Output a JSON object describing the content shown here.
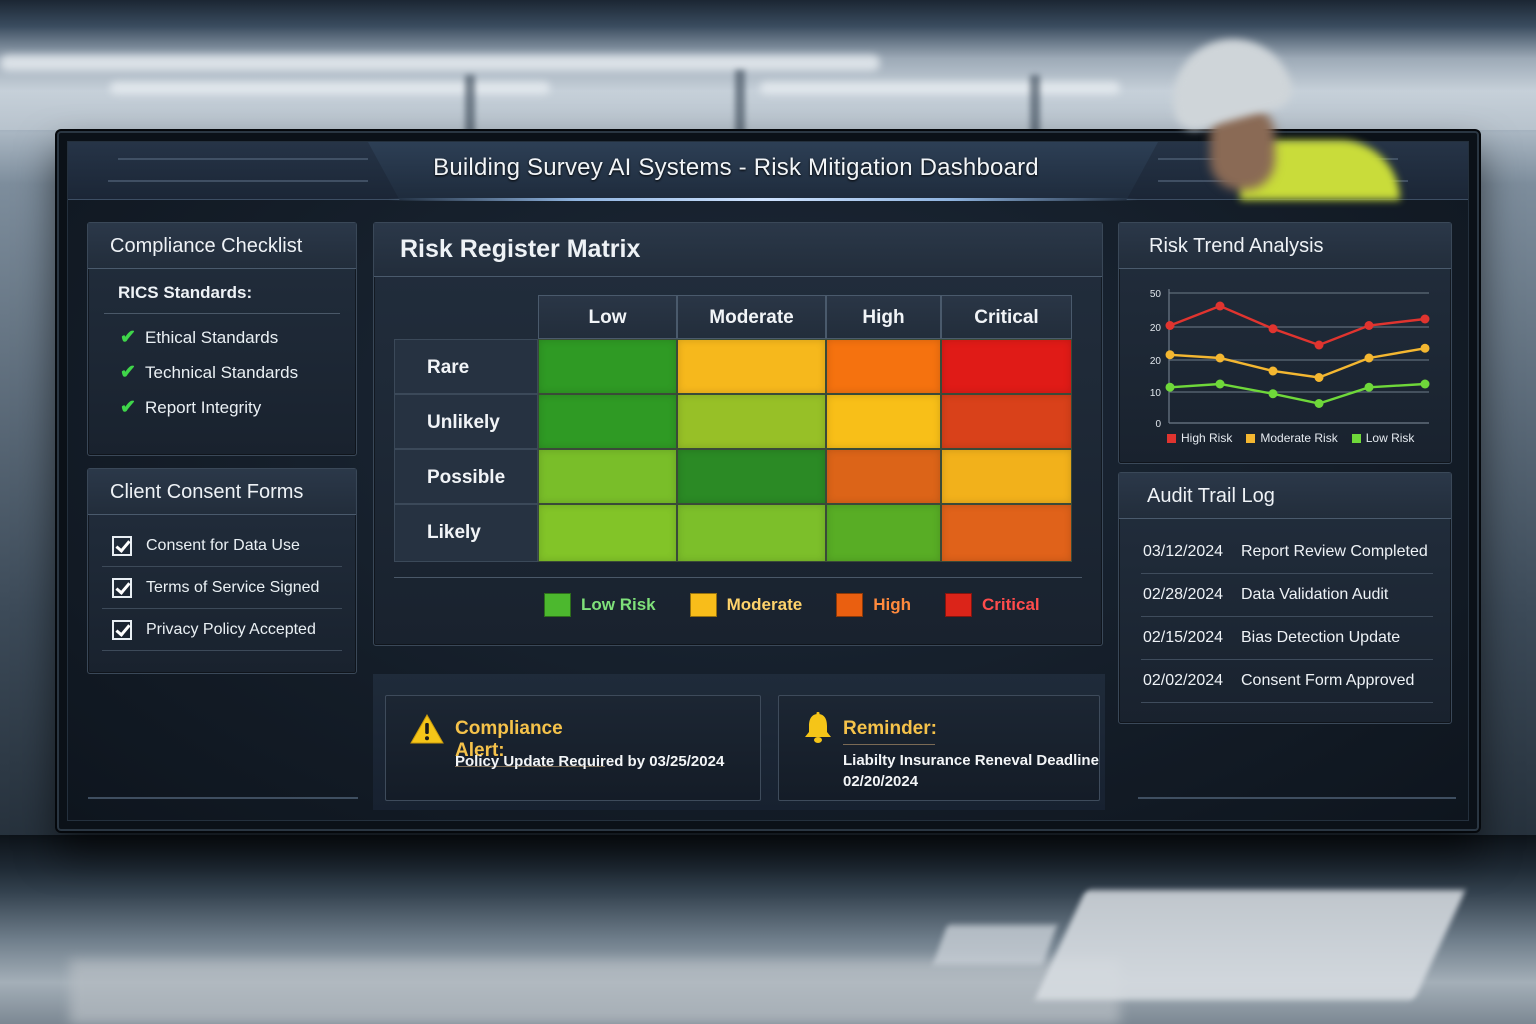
{
  "window": {
    "title": "Building Survey AI Systems - Risk Mitigation Dashboard"
  },
  "compliance": {
    "title": "Compliance Checklist",
    "section": "RICS Standards:",
    "items": [
      {
        "label": "Ethical Standards",
        "status": "checked"
      },
      {
        "label": "Technical Standards",
        "status": "checked"
      },
      {
        "label": "Report Integrity",
        "status": "checked"
      }
    ]
  },
  "consent": {
    "title": "Client Consent Forms",
    "items": [
      {
        "label": "Consent for Data Use",
        "checked": true
      },
      {
        "label": "Terms of Service Signed",
        "checked": true
      },
      {
        "label": "Privacy Policy Accepted",
        "checked": true
      }
    ]
  },
  "matrix": {
    "title": "Risk Register Matrix",
    "columns": [
      "Low",
      "Moderate",
      "High",
      "Critical"
    ],
    "rows": [
      "Rare",
      "Unlikely",
      "Possible",
      "Likely"
    ],
    "cells": [
      [
        "#2f9a24",
        "#f6b81c",
        "#f5720f",
        "#e01b17"
      ],
      [
        "#2f9a24",
        "#97c027",
        "#f8bf18",
        "#d9411a"
      ],
      [
        "#79be29",
        "#2b8a25",
        "#dc6418",
        "#f2b11b"
      ],
      [
        "#82c428",
        "#7cbf2a",
        "#58ad25",
        "#e0621a"
      ]
    ],
    "legend": [
      {
        "label": "Low Risk",
        "color": "#4cb82e",
        "text_color": "#7fe07a"
      },
      {
        "label": "Moderate",
        "color": "#f8bd1a",
        "text_color": "#ffd36b"
      },
      {
        "label": "High",
        "color": "#ea5f10",
        "text_color": "#ff8a3d"
      },
      {
        "label": "Critical",
        "color": "#db2419",
        "text_color": "#ff4c4c"
      }
    ]
  },
  "trend": {
    "title": "Risk Trend Analysis",
    "legend": [
      "High Risk",
      "Moderate Risk",
      "Low Risk"
    ]
  },
  "chart_data": {
    "type": "line",
    "title": "Risk Trend Analysis",
    "xlabel": "",
    "ylabel": "",
    "y_tick_labels": [
      "0",
      "10",
      "20",
      "20",
      "50"
    ],
    "x": [
      1,
      2,
      3,
      4,
      5,
      6
    ],
    "grid": true,
    "legend_position": "bottom",
    "series": [
      {
        "name": "High Risk",
        "color": "#e0342f",
        "values": [
          30,
          36,
          29,
          24,
          30,
          32
        ]
      },
      {
        "name": "Moderate Risk",
        "color": "#f4b731",
        "values": [
          21,
          20,
          16,
          14,
          20,
          23
        ]
      },
      {
        "name": "Low Risk",
        "color": "#6fd83a",
        "values": [
          11,
          12,
          9,
          6,
          11,
          12
        ]
      }
    ]
  },
  "audit": {
    "title": "Audit Trail Log",
    "entries": [
      {
        "date": "03/12/2024",
        "event": "Report Review Completed"
      },
      {
        "date": "02/28/2024",
        "event": "Data Validation Audit"
      },
      {
        "date": "02/15/2024",
        "event": "Bias Detection Update"
      },
      {
        "date": "02/02/2024",
        "event": "Consent Form Approved"
      }
    ]
  },
  "alerts": {
    "compliance": {
      "title": "Compliance Alert:",
      "body": "Policy Update Required by 03/25/2024",
      "icon": "warning-icon"
    },
    "reminder": {
      "title": "Reminder:",
      "body_line1": "Liabilty Insurance Reneval Deadline",
      "body_line2": "02/20/2024",
      "icon": "bell-icon"
    }
  }
}
